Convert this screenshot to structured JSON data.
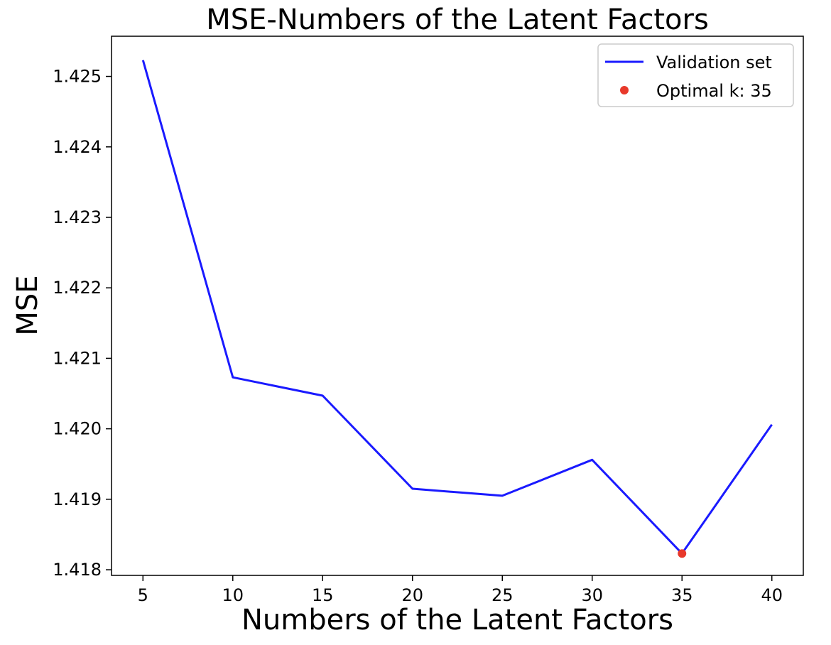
{
  "chart_data": {
    "type": "line",
    "title": "MSE-Numbers of the Latent Factors",
    "xlabel": "Numbers of the Latent Factors",
    "ylabel": "MSE",
    "x": [
      5,
      10,
      15,
      20,
      25,
      30,
      35,
      40
    ],
    "series": [
      {
        "name": "Validation set",
        "values": [
          1.42523,
          1.42073,
          1.42047,
          1.41915,
          1.41905,
          1.41956,
          1.41823,
          1.42006
        ],
        "color": "#1a1aff"
      }
    ],
    "highlight": {
      "name": "Optimal k: 35",
      "x": 35,
      "y": 1.41823,
      "color": "#e8392b"
    },
    "xticks": [
      5,
      10,
      15,
      20,
      25,
      30,
      35,
      40
    ],
    "yticks": [
      1.418,
      1.419,
      1.42,
      1.421,
      1.422,
      1.423,
      1.424,
      1.425
    ],
    "ytick_labels": [
      "1.418",
      "1.419",
      "1.420",
      "1.421",
      "1.422",
      "1.423",
      "1.424",
      "1.425"
    ],
    "xlim": [
      3.25,
      41.75
    ],
    "ylim": [
      1.41792,
      1.42557
    ],
    "grid": false,
    "legend_position": "top-right"
  }
}
